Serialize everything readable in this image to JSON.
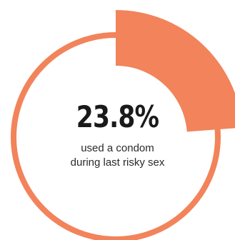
{
  "chart_data": {
    "type": "pie",
    "value_percent": 23.8,
    "display_value": "23.8%",
    "caption_lines": [
      "used a condom",
      "during last risky sex"
    ],
    "colors": {
      "accent": "#F2835A",
      "ring": "#F2835A",
      "inner_fill": "#FFFFFF",
      "text": "#1A1A1A"
    }
  }
}
